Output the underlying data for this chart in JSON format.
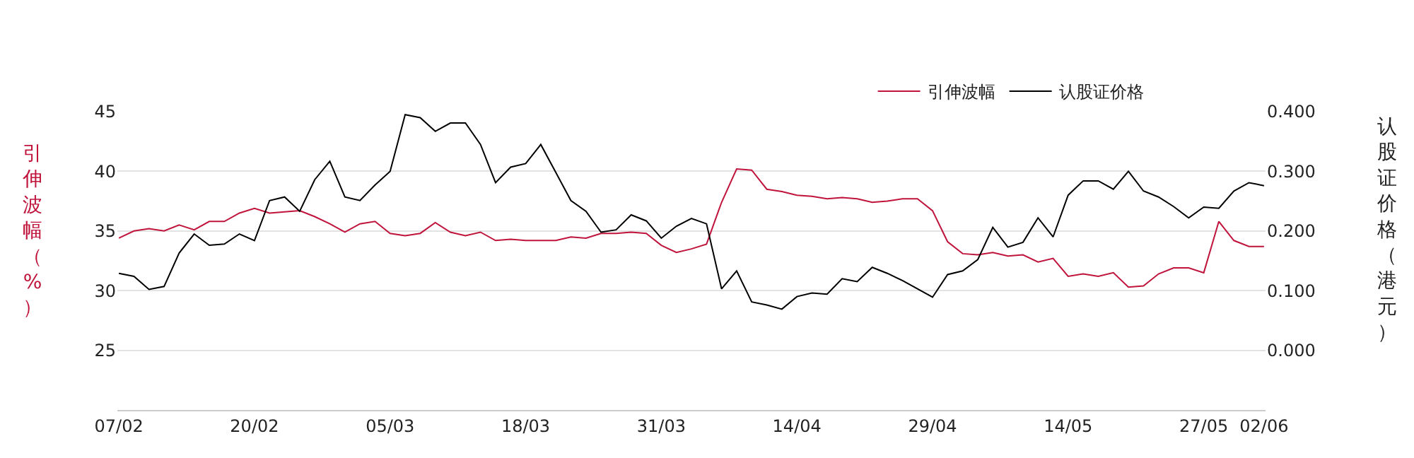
{
  "chart_data": {
    "type": "line",
    "categories": [
      "07/02",
      null,
      null,
      null,
      null,
      null,
      null,
      null,
      null,
      "20/02",
      null,
      null,
      null,
      null,
      null,
      null,
      null,
      null,
      "05/03",
      null,
      null,
      null,
      null,
      null,
      null,
      null,
      null,
      "18/03",
      null,
      null,
      null,
      null,
      null,
      null,
      null,
      null,
      "31/03",
      null,
      null,
      null,
      null,
      null,
      null,
      null,
      null,
      "14/04",
      null,
      null,
      null,
      null,
      null,
      null,
      null,
      null,
      "29/04",
      null,
      null,
      null,
      null,
      null,
      null,
      null,
      null,
      "14/05",
      null,
      null,
      null,
      null,
      null,
      null,
      null,
      null,
      "27/05",
      null,
      null,
      null,
      "02/06"
    ],
    "series": [
      {
        "name": "引伸波幅",
        "color": "#c0143c",
        "axis": "y",
        "values": [
          34.4,
          35.0,
          35.2,
          35.0,
          35.5,
          35.1,
          35.8,
          35.8,
          36.5,
          36.9,
          36.5,
          36.6,
          36.7,
          36.2,
          35.6,
          34.9,
          35.6,
          35.8,
          34.8,
          34.6,
          34.8,
          35.7,
          34.9,
          34.6,
          34.9,
          34.2,
          34.3,
          34.2,
          34.2,
          34.2,
          34.5,
          34.4,
          34.8,
          34.8,
          34.9,
          34.8,
          33.8,
          33.2,
          33.5,
          33.9,
          37.4,
          40.2,
          40.1,
          38.5,
          38.3,
          38.0,
          37.9,
          37.7,
          37.8,
          37.7,
          37.4,
          37.5,
          37.7,
          37.7,
          36.7,
          34.1,
          33.1,
          33.0,
          33.2,
          32.9,
          33.0,
          32.4,
          32.7,
          31.2,
          31.4,
          31.2,
          31.5,
          30.3,
          30.4,
          31.4,
          31.9,
          31.9,
          31.5,
          35.8,
          34.2,
          33.7,
          33.7
        ]
      },
      {
        "name": "认股证价格",
        "color": "#000000",
        "axis": "y2",
        "values": [
          0.129,
          0.124,
          0.102,
          0.107,
          0.163,
          0.195,
          0.176,
          0.178,
          0.195,
          0.184,
          0.251,
          0.257,
          0.233,
          0.286,
          0.317,
          0.257,
          0.251,
          0.277,
          0.3,
          0.395,
          0.39,
          0.367,
          0.381,
          0.381,
          0.345,
          0.281,
          0.307,
          0.313,
          0.345,
          0.298,
          0.251,
          0.233,
          0.198,
          0.202,
          0.227,
          0.217,
          0.188,
          0.208,
          0.221,
          0.212,
          0.103,
          0.133,
          0.081,
          0.076,
          0.069,
          0.09,
          0.096,
          0.094,
          0.12,
          0.115,
          0.139,
          0.129,
          0.117,
          0.103,
          0.089,
          0.127,
          0.133,
          0.152,
          0.206,
          0.173,
          0.181,
          0.222,
          0.19,
          0.26,
          0.284,
          0.284,
          0.27,
          0.3,
          0.267,
          0.257,
          0.241,
          0.222,
          0.24,
          0.238,
          0.267,
          0.281,
          0.276
        ]
      }
    ],
    "ylabel": "引伸波幅（%）",
    "y2label": "认股证价格（港元）",
    "ylim": [
      20,
      45
    ],
    "yticks": [
      {
        "value": 20,
        "label": null
      },
      25,
      30,
      35,
      40,
      45
    ],
    "y2lim": [
      -0.1,
      0.4
    ],
    "y2ticks": [
      {
        "value": 0,
        "label": "0.000"
      },
      {
        "value": 0.1,
        "label": "0.100"
      },
      {
        "value": 0.2,
        "label": "0.200"
      },
      {
        "value": 0.3,
        "label": "0.300"
      },
      {
        "value": 0.4,
        "label": "0.400"
      }
    ],
    "grid": "y",
    "legend": "top right",
    "marker": "none",
    "line_style": "solid"
  }
}
